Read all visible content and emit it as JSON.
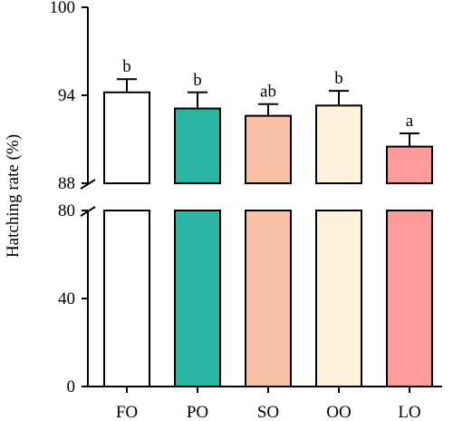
{
  "chart_data": {
    "type": "bar",
    "ylabel": "Hatching rate (%)",
    "categories": [
      "FO",
      "PO",
      "SO",
      "OO",
      "LO"
    ],
    "values": [
      94.2,
      93.1,
      92.6,
      93.3,
      90.5
    ],
    "errors": [
      0.9,
      1.1,
      0.8,
      1.0,
      0.9
    ],
    "significance": [
      "b",
      "b",
      "ab",
      "b",
      "a"
    ],
    "colors": [
      "#ffffff",
      "#2bb5a3",
      "#f7c2a7",
      "#fdf1dc",
      "#fd9a9a"
    ],
    "axis_break": {
      "lower_segment": {
        "ylim": [
          0,
          80
        ],
        "ticks": [
          "0",
          "40",
          "80"
        ]
      },
      "upper_segment": {
        "ylim": [
          88,
          100
        ],
        "ticks": [
          "88",
          "94",
          "100"
        ]
      }
    },
    "grid": false,
    "legend": "none"
  }
}
